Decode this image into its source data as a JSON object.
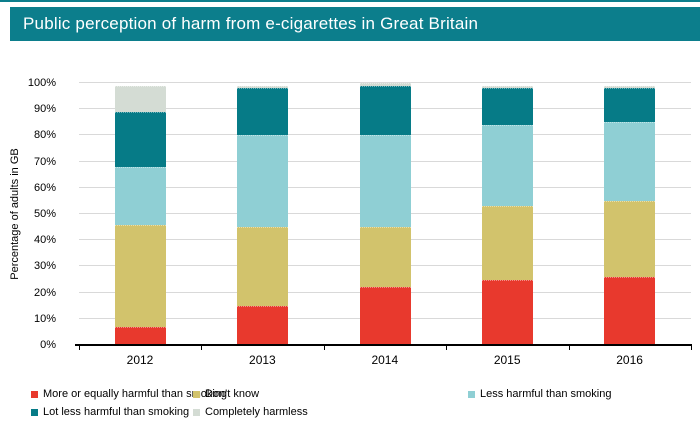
{
  "title": "Public perception of harm from e-cigarettes in Great Britain",
  "colors": {
    "header_bg": "#0c7e8c",
    "top_rule": "#0c7e8c",
    "gridline": "#d9d9d9",
    "axis": "#000000",
    "text": "#000000",
    "title_text": "#ffffff"
  },
  "chart_data": {
    "type": "bar",
    "stacked": true,
    "title": "Public perception of harm from e-cigarettes in Great Britain",
    "categories": [
      "2012",
      "2013",
      "2014",
      "2015",
      "2016"
    ],
    "series": [
      {
        "name": "More or equally harmful than smoking",
        "color": "#e8392d",
        "values": [
          7,
          15,
          22,
          25,
          26
        ]
      },
      {
        "name": "Don't know",
        "color": "#d2c36c",
        "values": [
          39,
          30,
          23,
          28,
          29
        ]
      },
      {
        "name": "Less harmful than smoking",
        "color": "#8fcfd4",
        "values": [
          22,
          35,
          35,
          31,
          30
        ]
      },
      {
        "name": "Lot less harmful than smoking",
        "color": "#067b87",
        "values": [
          21,
          18,
          19,
          14,
          13
        ]
      },
      {
        "name": "Completely harmless",
        "color": "#d4dcd4",
        "values": [
          10,
          1,
          1,
          1,
          1
        ]
      }
    ],
    "xlabel": "",
    "ylabel": "Percentage of adults in GB",
    "ylim": [
      0,
      100
    ],
    "ytick_labels": [
      "0%",
      "10%",
      "20%",
      "30%",
      "40%",
      "50%",
      "60%",
      "70%",
      "80%",
      "90%",
      "100%"
    ],
    "grid": true,
    "legend_position": "bottom"
  }
}
